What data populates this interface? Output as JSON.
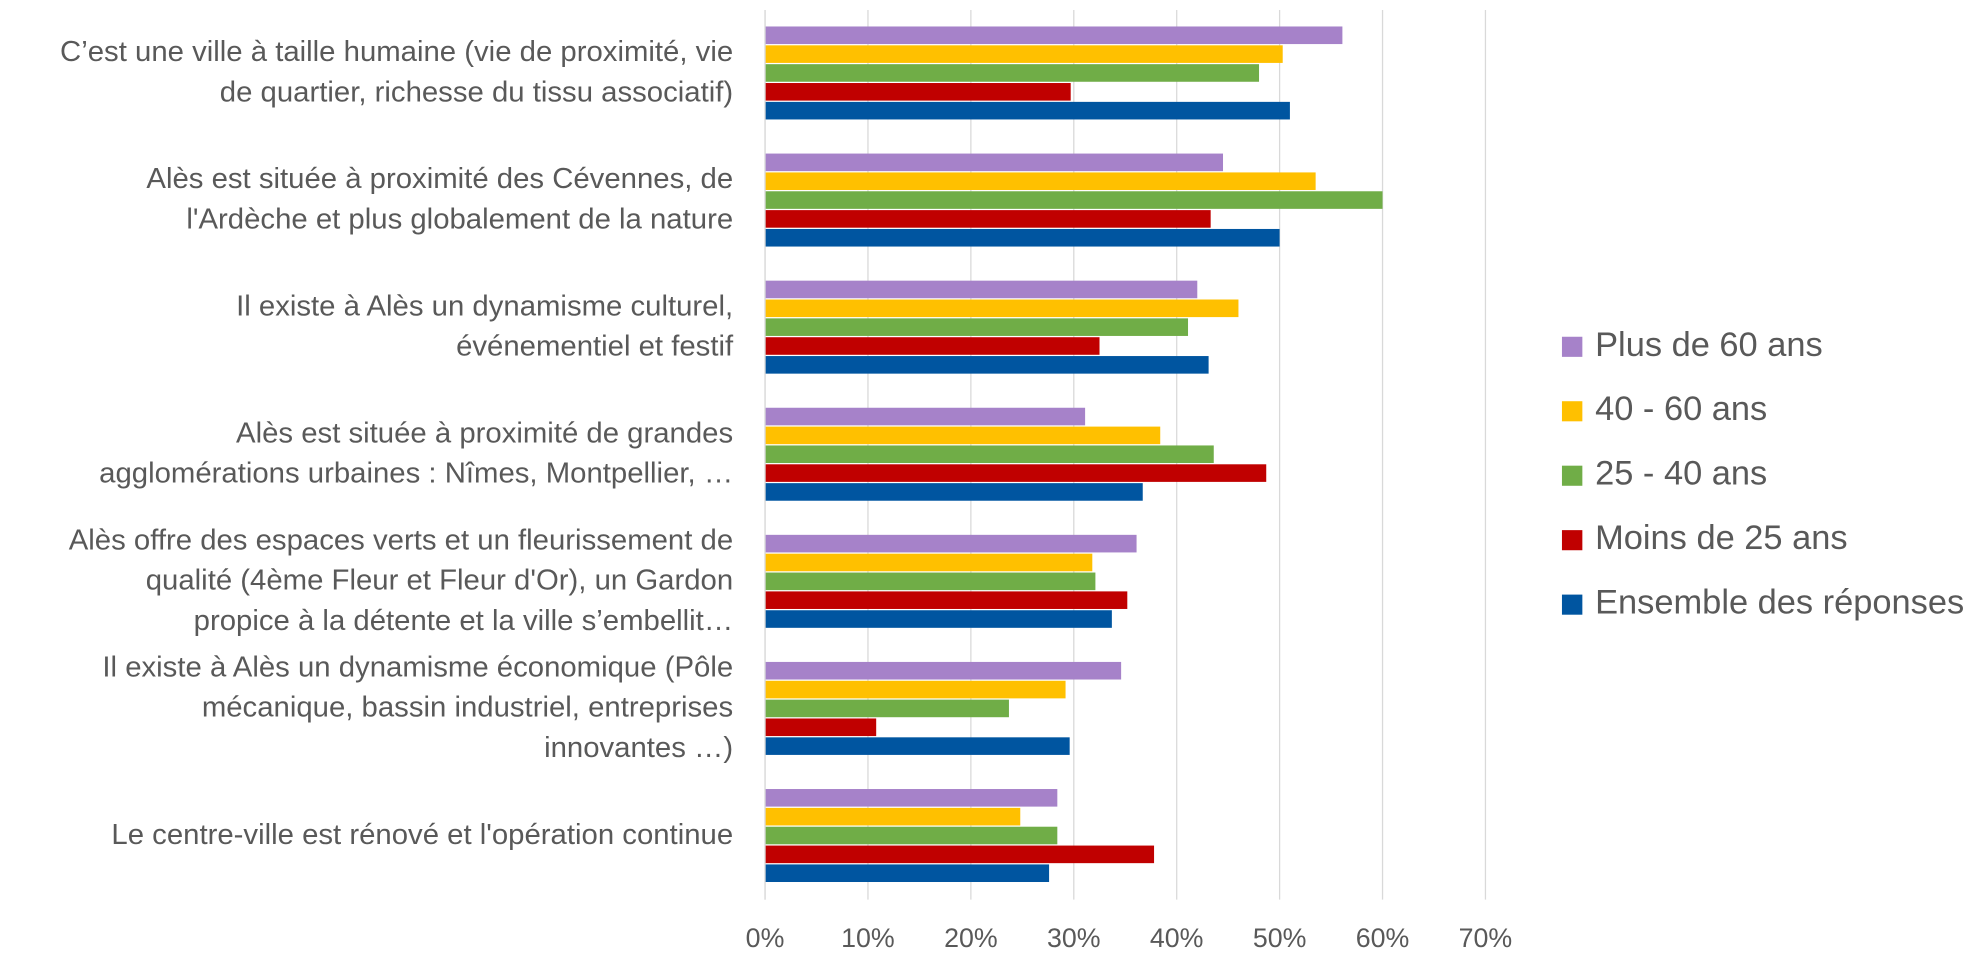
{
  "chart_data": {
    "type": "bar",
    "orientation": "horizontal",
    "categories": [
      [
        "C’est une ville à taille humaine (vie de proximité, vie",
        "de quartier, richesse du tissu associatif)"
      ],
      [
        "Alès est située à proximité des Cévennes, de",
        "l'Ardèche et plus globalement de la nature"
      ],
      [
        "Il existe à Alès un dynamisme culturel,",
        "événementiel et festif"
      ],
      [
        "Alès est située à proximité de grandes",
        "agglomérations urbaines : Nîmes, Montpellier, …"
      ],
      [
        "Alès offre des espaces verts et un fleurissement de",
        "qualité (4ème Fleur et Fleur d'Or), un Gardon",
        "propice à la détente et la ville s’embellit…"
      ],
      [
        "Il existe à Alès un dynamisme économique (Pôle",
        "mécanique, bassin industriel, entreprises",
        "innovantes …)"
      ],
      [
        "Le centre-ville est rénové et l'opération continue"
      ]
    ],
    "series": [
      {
        "name": "Plus de 60 ans",
        "color": "#a682c9",
        "values": [
          56.1,
          44.5,
          42,
          31.1,
          36.1,
          34.6,
          28.4
        ]
      },
      {
        "name": "40 - 60 ans",
        "color": "#ffc000",
        "values": [
          50.3,
          53.5,
          46,
          38.4,
          31.8,
          29.2,
          24.8
        ]
      },
      {
        "name": "25 - 40 ans",
        "color": "#70ad47",
        "values": [
          48,
          60,
          41.1,
          43.6,
          32.1,
          23.7,
          28.4
        ]
      },
      {
        "name": "Moins de 25 ans",
        "color": "#c00000",
        "values": [
          29.7,
          43.3,
          32.5,
          48.7,
          35.2,
          10.8,
          37.8
        ]
      },
      {
        "name": "Ensemble des réponses",
        "color": "#0055a0",
        "values": [
          51,
          50,
          43.1,
          36.7,
          33.7,
          29.6,
          27.6
        ]
      }
    ],
    "xlim": [
      0,
      70
    ],
    "xticks": [
      {
        "value": 0,
        "label": "0%"
      },
      {
        "value": 10,
        "label": "10%"
      },
      {
        "value": 20,
        "label": "20%"
      },
      {
        "value": 30,
        "label": "30%"
      },
      {
        "value": 40,
        "label": "40%"
      },
      {
        "value": 50,
        "label": "50%"
      },
      {
        "value": 60,
        "label": "60%"
      },
      {
        "value": 70,
        "label": "70%"
      }
    ],
    "grid": true,
    "legend": "right"
  }
}
